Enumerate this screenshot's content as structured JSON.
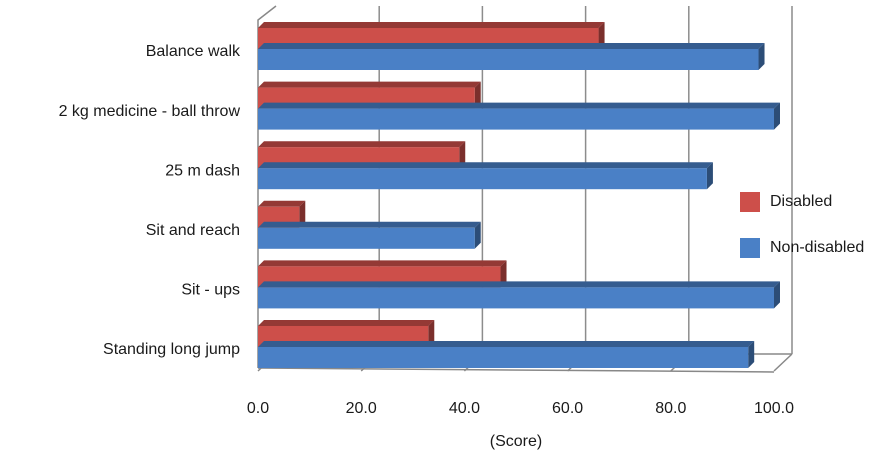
{
  "chart_data": {
    "type": "bar",
    "orientation": "horizontal",
    "title": "",
    "xlabel": "(Score)",
    "ylabel": "",
    "xlim": [
      0,
      100
    ],
    "x_ticks": [
      "0.0",
      "20.0",
      "40.0",
      "60.0",
      "80.0",
      "100.0"
    ],
    "grid": true,
    "legend_position": "right",
    "categories": [
      "Balance walk",
      "2 kg medicine - ball throw",
      "25 m dash",
      "Sit and reach",
      "Sit - ups",
      "Standing long jump"
    ],
    "series": [
      {
        "name": "Disabled",
        "color": "#cd4f4a",
        "values": [
          66,
          42,
          39,
          8,
          47,
          33
        ]
      },
      {
        "name": "Non-disabled",
        "color": "#4a80c6",
        "values": [
          97,
          100,
          87,
          42,
          100,
          95
        ]
      }
    ]
  }
}
